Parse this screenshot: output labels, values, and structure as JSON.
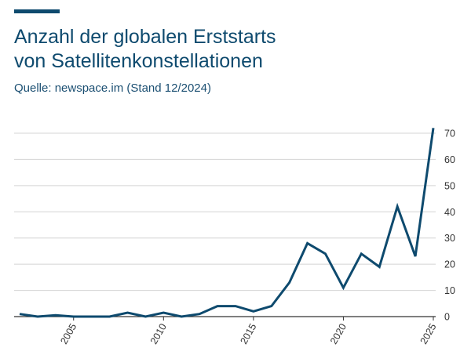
{
  "colors": {
    "accent": "#0e4a6e",
    "line": "#0e4a6e",
    "grid": "#d4d4d4",
    "axis": "#333333"
  },
  "header": {
    "title_line1": "Anzahl der globalen Erststarts",
    "title_line2": "von Satellitenkonstellationen",
    "source": "Quelle: newspace.im (Stand 12/2024)"
  },
  "chart_data": {
    "type": "line",
    "title": "Anzahl der globalen Erststarts von Satellitenkonstellationen",
    "xlabel": "",
    "ylabel": "",
    "x": [
      2002,
      2003,
      2004,
      2005,
      2006,
      2007,
      2008,
      2009,
      2010,
      2011,
      2012,
      2013,
      2014,
      2015,
      2016,
      2017,
      2018,
      2019,
      2020,
      2021,
      2022,
      2023,
      2024,
      2025
    ],
    "series": [
      {
        "name": "",
        "values": [
          1,
          0,
          0.5,
          0,
          0,
          0,
          1.5,
          0,
          1.5,
          0,
          1,
          4,
          4,
          2,
          4,
          13,
          28,
          24,
          11,
          24,
          19,
          42,
          23,
          72
        ]
      }
    ],
    "xlim": [
      2002,
      2025
    ],
    "ylim": [
      0,
      70
    ],
    "x_ticks": [
      "2005",
      "2010",
      "2015",
      "2020",
      "2025"
    ],
    "y_ticks": [
      "0",
      "10",
      "20",
      "30",
      "40",
      "50",
      "60",
      "70"
    ],
    "grid": true,
    "y_axis_side": "right"
  }
}
